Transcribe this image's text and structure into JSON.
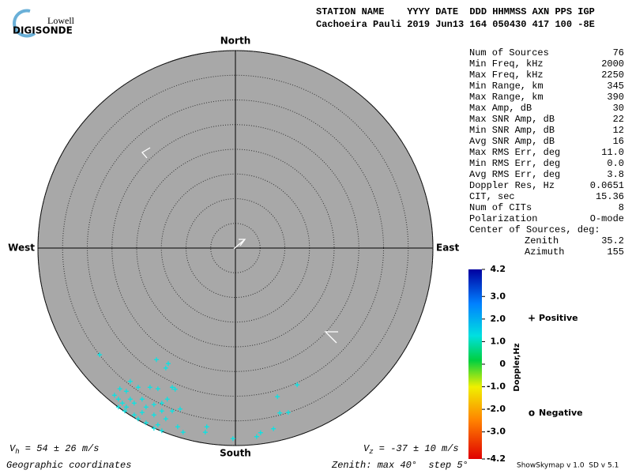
{
  "logo": {
    "top": "Lowell",
    "bottom": "DIGISONDE"
  },
  "header": {
    "line1": "STATION NAME    YYYY DATE  DDD HHMMSS AXN PPS IGP",
    "line2": "Cachoeira Pauli 2019 Jun13 164 050430 417 100 -8E"
  },
  "stats": [
    [
      "Num of Sources",
      "76"
    ],
    [
      "Min Freq, kHz",
      "2000"
    ],
    [
      "Max Freq, kHz",
      "2250"
    ],
    [
      "Min Range, km",
      "345"
    ],
    [
      "Max Range, km",
      "390"
    ],
    [
      "Max Amp, dB",
      "30"
    ],
    [
      "Max SNR Amp, dB",
      "22"
    ],
    [
      "Min SNR Amp, dB",
      "12"
    ],
    [
      "Avg SNR Amp, dB",
      "16"
    ],
    [
      "Max RMS Err, deg",
      "11.0"
    ],
    [
      "Min RMS Err, deg",
      "0.0"
    ],
    [
      "Avg RMS Err, deg",
      "3.8"
    ],
    [
      "Doppler Res, Hz",
      "0.0651"
    ],
    [
      "CIT, sec",
      "15.36"
    ],
    [
      "Num of CITs",
      "8"
    ],
    [
      "Polarization",
      "O-mode"
    ]
  ],
  "center_of_sources": {
    "title": "Center of Sources, deg:",
    "rows": [
      [
        "Zenith",
        "35.2"
      ],
      [
        "Azimuth",
        "155"
      ]
    ]
  },
  "chart_data": {
    "type": "scatter",
    "directions": {
      "north": "North",
      "south": "South",
      "west": "West",
      "east": "East"
    },
    "xlim": [
      -40,
      40
    ],
    "ylim": [
      -40,
      40
    ],
    "rings": [
      5,
      10,
      15,
      20,
      25,
      30,
      35,
      40
    ],
    "series": [
      {
        "name": "Positive",
        "symbol": "+",
        "color": "#00e6e6",
        "x": [
          -27.5,
          -16.0,
          -13.6,
          -14.1,
          -21.3,
          -23.4,
          -22.1,
          -19.7,
          -17.3,
          -15.7,
          -12.8,
          -12.2,
          -24.5,
          -23.7,
          -22.9,
          -22.1,
          -21.3,
          -20.5,
          -18.9,
          -18.1,
          -16.5,
          -14.9,
          -13.8,
          -23.7,
          -22.4,
          -20.5,
          -18.9,
          -16.5,
          -14.9,
          -14.1,
          -11.2,
          -19.7,
          -18.1,
          -15.7,
          -16.5,
          -14.9,
          -11.7,
          -10.6,
          -5.8,
          -6.1,
          -12.8,
          12.5,
          8.5,
          9.0,
          10.7,
          7.7,
          5.1,
          4.3,
          -0.5
        ],
        "y": [
          -21.6,
          -22.6,
          -23.4,
          -24.3,
          -27.0,
          -28.5,
          -29.0,
          -28.2,
          -28.2,
          -28.5,
          -28.2,
          -28.6,
          -29.8,
          -30.6,
          -31.4,
          -32.2,
          -30.6,
          -31.4,
          -30.6,
          -32.2,
          -31.7,
          -31.4,
          -30.6,
          -32.2,
          -33.0,
          -33.8,
          -33.3,
          -33.8,
          -33.0,
          -34.6,
          -32.6,
          -34.6,
          -35.4,
          -35.8,
          -36.5,
          -37.0,
          -36.2,
          -37.3,
          -36.2,
          -37.3,
          -33.0,
          -27.7,
          -30.1,
          -33.4,
          -33.3,
          -36.6,
          -37.4,
          -38.2,
          -38.6
        ]
      }
    ],
    "legend": [
      {
        "symbol": "+",
        "label": "Positive",
        "color": "#0000cc"
      },
      {
        "symbol": "o",
        "label": "Negative",
        "color": "#cc0000"
      }
    ],
    "colorbar": {
      "label": "Doppler,Hz",
      "lim": [
        -4.2,
        4.2
      ],
      "ticks": [
        4.2,
        {
          "value": 3,
          "label": "3.0"
        },
        {
          "value": 2,
          "label": "2.0"
        },
        {
          "value": 1,
          "label": "1.0"
        },
        0,
        {
          "value": -1,
          "label": "-1.0"
        },
        {
          "value": -2,
          "label": "-2.0"
        },
        {
          "value": -3,
          "label": "-3.0"
        },
        -4.2
      ]
    }
  },
  "footer": {
    "vh": {
      "symbol": "V",
      "sub": "h",
      "text": " = 54 ± 26 m/s"
    },
    "vz": {
      "symbol": "V",
      "sub": "z",
      "text": " = -37 ± 10 m/s"
    },
    "coords": "Geographic coordinates",
    "zenith": "Zenith: max 40°  step 5°",
    "version": "ShowSkymap v 1.0  SD v 5.1"
  }
}
